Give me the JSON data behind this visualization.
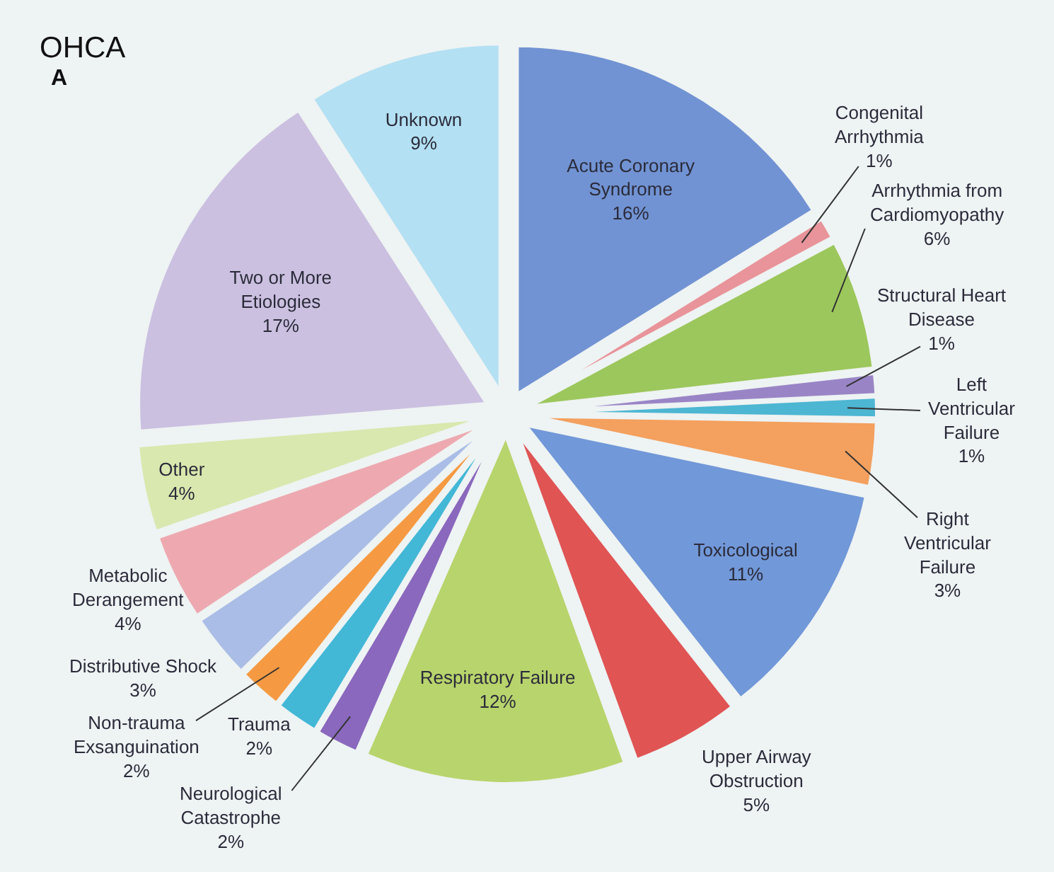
{
  "chart_data": {
    "type": "pie",
    "title": "OHCA",
    "annotations": [
      "A"
    ],
    "categories": [
      "Acute Coronary\nSyndrome",
      "Congenital\nArrhythmia",
      "Arrhythmia from\nCardiomyopathy",
      "Structural Heart\nDisease",
      "Left\nVentricular\nFailure",
      "Right\nVentricular\nFailure",
      "Toxicological",
      "Upper Airway\nObstruction",
      "Respiratory Failure",
      "Neurological\nCatastrophe",
      "Trauma",
      "Non-trauma\nExsanguination",
      "Distributive Shock",
      "Metabolic\nDerangement",
      "Other",
      "Two or More\nEtiologies",
      "Unknown"
    ],
    "values": [
      16,
      1,
      6,
      1,
      1,
      3,
      11,
      5,
      12,
      2,
      2,
      2,
      3,
      4,
      4,
      17,
      9
    ],
    "value_labels": [
      "16%",
      "1%",
      "6%",
      "1%",
      "1%",
      "3%",
      "11%",
      "5%",
      "12%",
      "2%",
      "2%",
      "2%",
      "3%",
      "4%",
      "4%",
      "17%",
      "9%"
    ],
    "colors": [
      "#7193d3",
      "#e8949a",
      "#9cc75c",
      "#9985c6",
      "#4db6d2",
      "#f4a05e",
      "#7198d8",
      "#e05454",
      "#b8d46c",
      "#8a68bd",
      "#43b7d6",
      "#f59a42",
      "#a9bde6",
      "#eea9b0",
      "#d9e8ae",
      "#cbc0e0",
      "#b3e0f2"
    ],
    "legend": false
  }
}
